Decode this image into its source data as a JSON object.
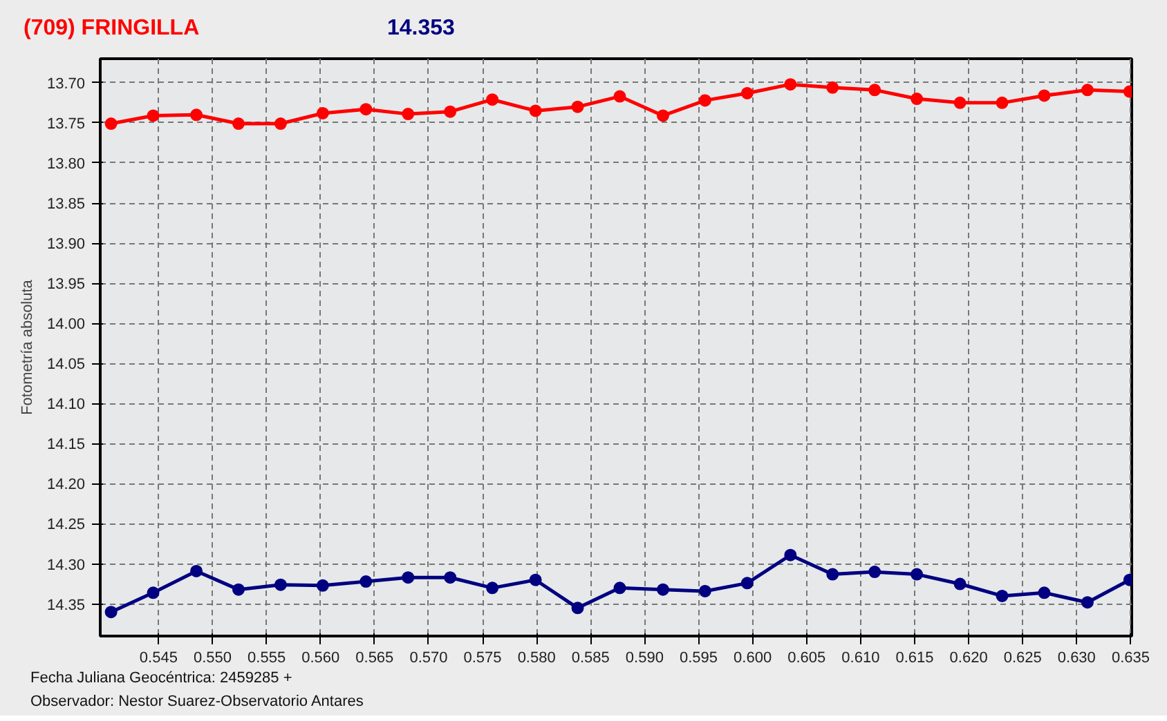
{
  "chart_data": {
    "type": "line",
    "title": "(709) FRINGILLA",
    "subtitle": "14.353",
    "ylabel": "Fotometría absoluta",
    "annotations": [
      "Fecha Juliana Geocéntrica: 2459285 +",
      "Observador: Nestor Suarez-Observatorio Antares"
    ],
    "x": [
      0.5406,
      0.5445,
      0.5485,
      0.5524,
      0.5563,
      0.5602,
      0.5642,
      0.5681,
      0.572,
      0.5759,
      0.5799,
      0.5838,
      0.5877,
      0.5917,
      0.5956,
      0.5995,
      0.6035,
      0.6074,
      0.6113,
      0.6152,
      0.6192,
      0.6231,
      0.627,
      0.631,
      0.6349
    ],
    "series": [
      {
        "color": "#ff0000",
        "values": [
          13.751,
          13.741,
          13.74,
          13.751,
          13.751,
          13.738,
          13.733,
          13.739,
          13.736,
          13.721,
          13.735,
          13.73,
          13.717,
          13.741,
          13.722,
          13.713,
          13.702,
          13.706,
          13.709,
          13.72,
          13.725,
          13.725,
          13.716,
          13.709,
          13.711
        ]
      },
      {
        "color": "#000080",
        "values": [
          14.36,
          14.336,
          14.309,
          14.332,
          14.326,
          14.327,
          14.322,
          14.317,
          14.317,
          14.33,
          14.32,
          14.355,
          14.33,
          14.332,
          14.334,
          14.324,
          14.289,
          14.313,
          14.31,
          14.313,
          14.325,
          14.34,
          14.336,
          14.348,
          14.32
        ]
      }
    ],
    "xlim": [
      0.5396,
      0.6351
    ],
    "xticks": [
      {
        "value": 0.545,
        "label": "0.545"
      },
      {
        "value": 0.55,
        "label": "0.550"
      },
      {
        "value": 0.555,
        "label": "0.555"
      },
      {
        "value": 0.56,
        "label": "0.560"
      },
      {
        "value": 0.565,
        "label": "0.565"
      },
      {
        "value": 0.57,
        "label": "0.570"
      },
      {
        "value": 0.575,
        "label": "0.575"
      },
      {
        "value": 0.58,
        "label": "0.580"
      },
      {
        "value": 0.585,
        "label": "0.585"
      },
      {
        "value": 0.59,
        "label": "0.590"
      },
      {
        "value": 0.595,
        "label": "0.595"
      },
      {
        "value": 0.6,
        "label": "0.600"
      },
      {
        "value": 0.605,
        "label": "0.605"
      },
      {
        "value": 0.61,
        "label": "0.610"
      },
      {
        "value": 0.615,
        "label": "0.615"
      },
      {
        "value": 0.62,
        "label": "0.620"
      },
      {
        "value": 0.625,
        "label": "0.625"
      },
      {
        "value": 0.63,
        "label": "0.630"
      },
      {
        "value": 0.635,
        "label": "0.635"
      }
    ],
    "ylim": [
      14.39,
      13.67
    ],
    "yticks": [
      {
        "value": 13.7,
        "label": "13.70"
      },
      {
        "value": 13.75,
        "label": "13.75"
      },
      {
        "value": 13.8,
        "label": "13.80"
      },
      {
        "value": 13.85,
        "label": "13.85"
      },
      {
        "value": 13.9,
        "label": "13.90"
      },
      {
        "value": 13.95,
        "label": "13.95"
      },
      {
        "value": 14.0,
        "label": "14.00"
      },
      {
        "value": 14.05,
        "label": "14.05"
      },
      {
        "value": 14.1,
        "label": "14.10"
      },
      {
        "value": 14.15,
        "label": "14.15"
      },
      {
        "value": 14.2,
        "label": "14.20"
      },
      {
        "value": 14.25,
        "label": "14.25"
      },
      {
        "value": 14.3,
        "label": "14.30"
      },
      {
        "value": 14.35,
        "label": "14.35"
      }
    ],
    "grid": true,
    "marker": "circle",
    "line_style": "solid"
  }
}
